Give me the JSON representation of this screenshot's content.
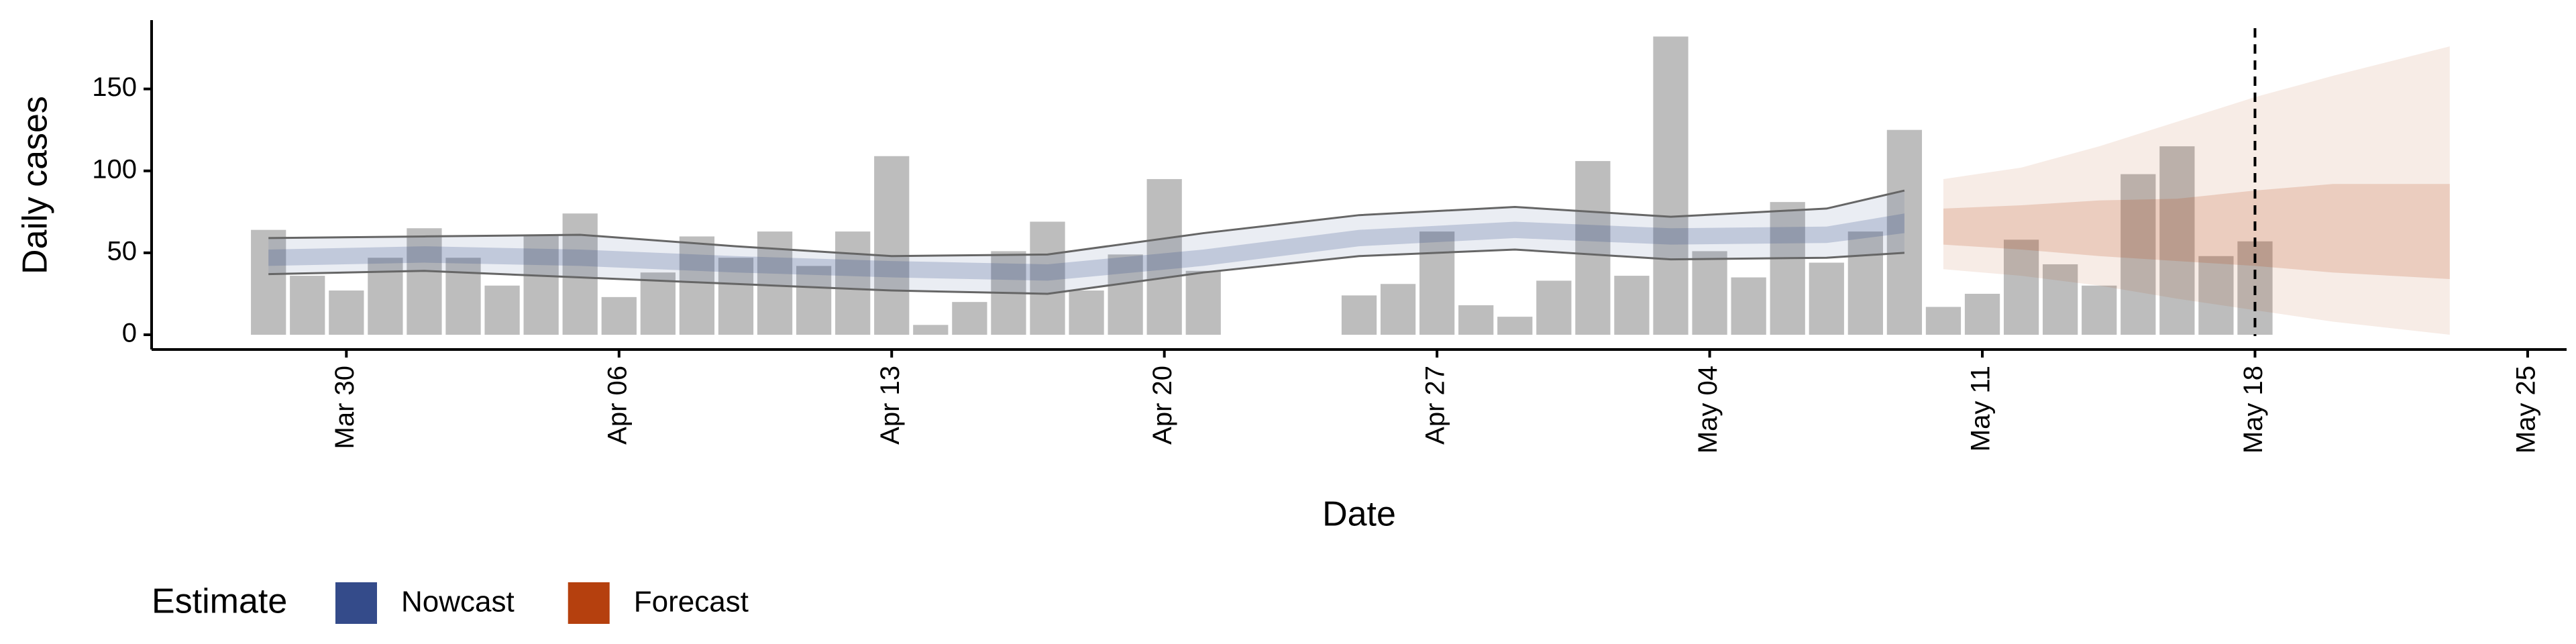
{
  "chart_data": {
    "type": "bar",
    "xlabel": "Date",
    "ylabel": "Daily cases",
    "color": "#bdbdbd",
    "x": [
      "03-28",
      "03-29",
      "03-30",
      "03-31",
      "04-01",
      "04-02",
      "04-03",
      "04-04",
      "04-05",
      "04-06",
      "04-07",
      "04-08",
      "04-09",
      "04-10",
      "04-11",
      "04-12",
      "04-13",
      "04-14",
      "04-15",
      "04-16",
      "04-17",
      "04-18",
      "04-19",
      "04-20",
      "04-21",
      "04-25",
      "04-26",
      "04-27",
      "04-28",
      "04-29",
      "04-30",
      "05-01",
      "05-02",
      "05-03",
      "05-04",
      "05-05",
      "05-06",
      "05-07",
      "05-08",
      "05-09",
      "05-10",
      "05-11",
      "05-12",
      "05-13",
      "05-14",
      "05-15",
      "05-16",
      "05-17",
      "05-18"
    ],
    "values": [
      64,
      36,
      27,
      47,
      65,
      47,
      30,
      61,
      74,
      23,
      38,
      60,
      47,
      63,
      42,
      63,
      109,
      6,
      20,
      51,
      69,
      27,
      49,
      95,
      39,
      24,
      31,
      63,
      18,
      11,
      33,
      106,
      36,
      182,
      51,
      35,
      81,
      44,
      63,
      125,
      17,
      25,
      58,
      43,
      30,
      98,
      115,
      48,
      57
    ],
    "xlim": [
      "03-25",
      "05-26"
    ],
    "xticks": [
      {
        "value": "03-30",
        "label": "Mar 30"
      },
      {
        "value": "04-06",
        "label": "Apr 06"
      },
      {
        "value": "04-13",
        "label": "Apr 13"
      },
      {
        "value": "04-20",
        "label": "Apr 20"
      },
      {
        "value": "04-27",
        "label": "Apr 27"
      },
      {
        "value": "05-04",
        "label": "May 04"
      },
      {
        "value": "05-11",
        "label": "May 11"
      },
      {
        "value": "05-18",
        "label": "May 18"
      },
      {
        "value": "05-25",
        "label": "May 25"
      }
    ],
    "ylim": [
      -9,
      192
    ],
    "yticks": [
      0,
      50,
      100,
      150
    ],
    "vline": "05-18",
    "legend_title": "Estimate",
    "series": [
      {
        "name": "Nowcast",
        "color": "#344b8a",
        "x": [
          "03-28",
          "04-01",
          "04-05",
          "04-09",
          "04-13",
          "04-17",
          "04-21",
          "04-25",
          "04-29",
          "05-03",
          "05-07",
          "05-09"
        ],
        "lower_90": [
          37,
          39,
          35,
          31,
          27,
          25,
          38,
          48,
          52,
          46,
          47,
          50
        ],
        "upper_90": [
          59,
          60,
          61,
          54,
          48,
          49,
          62,
          73,
          78,
          72,
          77,
          88
        ],
        "lower_50": [
          42,
          44,
          42,
          38,
          35,
          33,
          42,
          54,
          59,
          55,
          56,
          62
        ],
        "upper_50": [
          52,
          54,
          52,
          48,
          45,
          43,
          52,
          64,
          69,
          65,
          66,
          74
        ]
      },
      {
        "name": "Forecast",
        "color": "#b5400e",
        "x": [
          "05-10",
          "05-12",
          "05-14",
          "05-16",
          "05-18",
          "05-20",
          "05-23"
        ],
        "lower_90": [
          40,
          36,
          30,
          22,
          15,
          8,
          0
        ],
        "upper_90": [
          95,
          102,
          115,
          130,
          145,
          158,
          176
        ],
        "lower_50": [
          55,
          52,
          48,
          45,
          42,
          38,
          34
        ],
        "upper_50": [
          77,
          79,
          82,
          83,
          88,
          92,
          92
        ]
      }
    ]
  }
}
